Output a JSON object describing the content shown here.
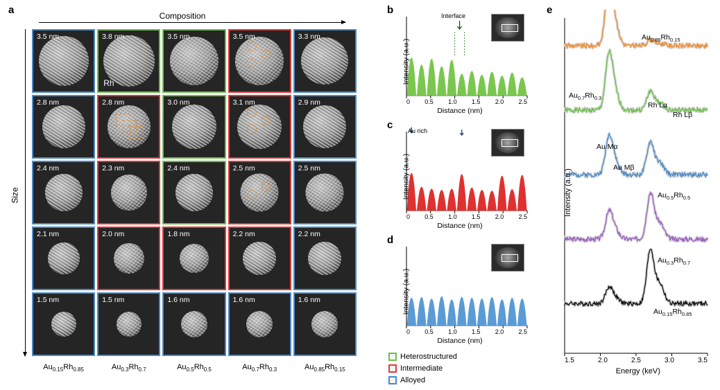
{
  "colors": {
    "heterostructured": "#6bbf4a",
    "intermediate": "#e03a3a",
    "alloyed": "#4a8ac9",
    "green_fill": "#7ac74f",
    "red_fill": "#e03131",
    "blue_fill": "#5a9bd5",
    "spectra": {
      "Au0.85Rh0.15": "#f08c2e",
      "Au0.7Rh0.3": "#6bbf4a",
      "Au0.5Rh0.5": "#4a8ac9",
      "Au0.3Rh0.7": "#9b5fc0",
      "Au0.15Rh0.85": "#111111"
    }
  },
  "panel_a": {
    "label": "a",
    "x_axis": "Composition",
    "y_axis": "Size",
    "columns": [
      "Au0.15Rh0.85",
      "Au0.3Rh0.7",
      "Au0.5Rh0.5",
      "Au0.7Rh0.3",
      "Au0.85Rh0.15"
    ],
    "grid": [
      [
        {
          "size": "3.5 nm",
          "cat": "alloyed",
          "diam": 72
        },
        {
          "size": "3.8 nm",
          "cat": "heterostructured",
          "diam": 74,
          "rh_label": "Rh"
        },
        {
          "size": "3.5 nm",
          "cat": "heterostructured",
          "diam": 70
        },
        {
          "size": "3.5 nm",
          "cat": "intermediate",
          "diam": 70,
          "orange_circles": 3
        },
        {
          "size": "3.3 nm",
          "cat": "alloyed",
          "diam": 68
        }
      ],
      [
        {
          "size": "2.8 nm",
          "cat": "alloyed",
          "diam": 62
        },
        {
          "size": "2.8 nm",
          "cat": "intermediate",
          "diam": 62,
          "orange_rects": 3
        },
        {
          "size": "3.0 nm",
          "cat": "heterostructured",
          "diam": 64
        },
        {
          "size": "3.1 nm",
          "cat": "intermediate",
          "diam": 64,
          "orange_circles": 3
        },
        {
          "size": "2.9 nm",
          "cat": "alloyed",
          "diam": 62
        }
      ],
      [
        {
          "size": "2.4 nm",
          "cat": "alloyed",
          "diam": 54
        },
        {
          "size": "2.3 nm",
          "cat": "intermediate",
          "diam": 52
        },
        {
          "size": "2.4 nm",
          "cat": "heterostructured",
          "diam": 54
        },
        {
          "size": "2.5 nm",
          "cat": "intermediate",
          "diam": 55,
          "orange_circles": 2
        },
        {
          "size": "2.5 nm",
          "cat": "alloyed",
          "diam": 55
        }
      ],
      [
        {
          "size": "2.1 nm",
          "cat": "alloyed",
          "diam": 46
        },
        {
          "size": "2.0 nm",
          "cat": "intermediate",
          "diam": 44
        },
        {
          "size": "1.8 nm",
          "cat": "intermediate",
          "diam": 42
        },
        {
          "size": "2.2 nm",
          "cat": "intermediate",
          "diam": 48
        },
        {
          "size": "2.2 nm",
          "cat": "alloyed",
          "diam": 48
        }
      ],
      [
        {
          "size": "1.5 nm",
          "cat": "alloyed",
          "diam": 36
        },
        {
          "size": "1.5 nm",
          "cat": "alloyed",
          "diam": 36
        },
        {
          "size": "1.6 nm",
          "cat": "alloyed",
          "diam": 38
        },
        {
          "size": "1.6 nm",
          "cat": "alloyed",
          "diam": 38
        },
        {
          "size": "1.6 nm",
          "cat": "alloyed",
          "diam": 38
        }
      ]
    ]
  },
  "panel_b": {
    "label": "b",
    "ylabel": "Intensity (a.u.)",
    "xlabel": "Distance (nm)",
    "xticks": [
      "0",
      "0.5",
      "1.0",
      "1.5",
      "2.0",
      "2.5"
    ],
    "note": "Interface",
    "color": "#7ac74f",
    "peaks": [
      0.96,
      0.78,
      0.93,
      0.74,
      0.9,
      0.55,
      0.62,
      0.52,
      0.6,
      0.5,
      0.58,
      0.46
    ]
  },
  "panel_c": {
    "label": "c",
    "ylabel": "Intensity (a.u.)",
    "xlabel": "Distance (nm)",
    "xticks": [
      "0",
      "0.5",
      "1.0",
      "1.5",
      "2.0",
      "2.5"
    ],
    "note": "Au rich",
    "color": "#e03131",
    "peaks": [
      0.95,
      0.6,
      0.55,
      0.52,
      0.55,
      0.92,
      0.58,
      0.52,
      0.5,
      0.88,
      0.54,
      0.9
    ]
  },
  "panel_d": {
    "label": "d",
    "ylabel": "Intensity (a.u.)",
    "xlabel": "Distance (nm)",
    "xticks": [
      "0",
      "0.5",
      "1.0",
      "1.5",
      "2.0",
      "2.5"
    ],
    "color": "#5a9bd5",
    "peaks": [
      0.7,
      0.72,
      0.68,
      0.74,
      0.66,
      0.72,
      0.7,
      0.68,
      0.72,
      0.66,
      0.7,
      0.68
    ]
  },
  "panel_e": {
    "label": "e",
    "ylabel": "Intensity (a.u.)",
    "xlabel": "Energy (keV)",
    "xticks": [
      "1.5",
      "2.0",
      "2.5",
      "3.0",
      "3.5"
    ],
    "annotations": [
      "Au Mα",
      "Au Mβ",
      "Rh Lα",
      "Rh Lβ"
    ],
    "series": [
      {
        "name": "Au0.85Rh0.15",
        "color": "#f08c2e"
      },
      {
        "name": "Au0.7Rh0.3",
        "color": "#6bbf4a"
      },
      {
        "name": "Au0.5Rh0.5",
        "color": "#4a8ac9"
      },
      {
        "name": "Au0.3Rh0.7",
        "color": "#9b5fc0"
      },
      {
        "name": "Au0.15Rh0.85",
        "color": "#111111"
      }
    ]
  },
  "legend": [
    {
      "label": "Heterostructured",
      "color": "#6bbf4a"
    },
    {
      "label": "Intermediate",
      "color": "#e03a3a"
    },
    {
      "label": "Alloyed",
      "color": "#4a8ac9"
    }
  ]
}
